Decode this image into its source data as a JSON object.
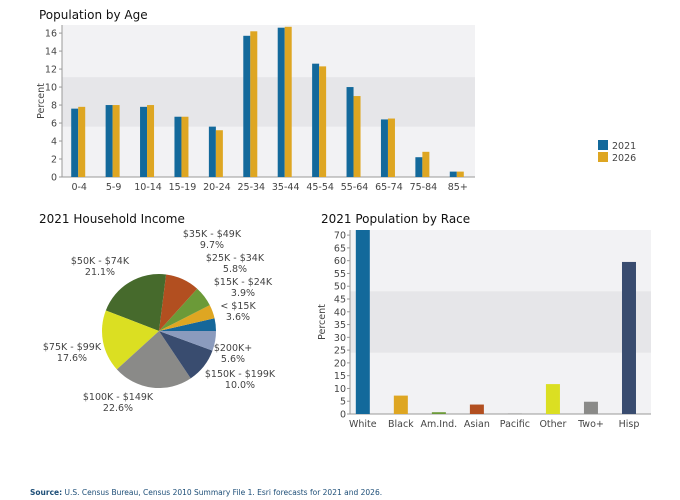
{
  "chart_data": [
    {
      "type": "bar",
      "title": "Population by Age",
      "ylabel": "Percent",
      "ylim": [
        0,
        16.9
      ],
      "yticks": [
        0,
        2,
        4,
        6,
        8,
        10,
        12,
        14,
        16
      ],
      "categories": [
        "0-4",
        "5-9",
        "10-14",
        "15-19",
        "20-24",
        "25-34",
        "35-44",
        "45-54",
        "55-64",
        "65-74",
        "75-84",
        "85+"
      ],
      "series": [
        {
          "name": "2021",
          "color": "#13699b",
          "values": [
            7.6,
            8.0,
            7.8,
            6.7,
            5.6,
            15.7,
            16.6,
            12.6,
            10.0,
            6.4,
            2.2,
            0.6
          ]
        },
        {
          "name": "2026",
          "color": "#dea622",
          "values": [
            7.8,
            8.0,
            8.0,
            6.7,
            5.2,
            16.2,
            16.7,
            12.3,
            9.0,
            6.5,
            2.8,
            0.6
          ]
        }
      ],
      "legend": "right"
    },
    {
      "type": "pie",
      "title": "2021 Household Income",
      "slices": [
        {
          "label": "< $15K",
          "value": 3.6,
          "pct": "3.6%",
          "color": "#15679a"
        },
        {
          "label": "$15K - $24K",
          "value": 3.9,
          "pct": "3.9%",
          "color": "#dea622"
        },
        {
          "label": "$25K - $34K",
          "value": 5.8,
          "pct": "5.8%",
          "color": "#6b9a38"
        },
        {
          "label": "$35K - $49K",
          "value": 9.7,
          "pct": "9.7%",
          "color": "#b24f20"
        },
        {
          "label": "$50K - $74K",
          "value": 21.1,
          "pct": "21.1%",
          "color": "#466a2c"
        },
        {
          "label": "$75K - $99K",
          "value": 17.6,
          "pct": "17.6%",
          "color": "#dbdf22"
        },
        {
          "label": "$100K - $149K",
          "value": 22.6,
          "pct": "22.6%",
          "color": "#8a8a88"
        },
        {
          "label": "$150K - $199K",
          "value": 10.0,
          "pct": "10.0%",
          "color": "#394c6f"
        },
        {
          "label": "$200K+",
          "value": 5.6,
          "pct": "5.6%",
          "color": "#8b9bbd"
        }
      ]
    },
    {
      "type": "bar",
      "title": "2021 Population by Race",
      "ylabel": "Percent",
      "ylim": [
        0,
        72
      ],
      "yticks": [
        0,
        5,
        10,
        15,
        20,
        25,
        30,
        35,
        40,
        45,
        50,
        55,
        60,
        65,
        70
      ],
      "categories": [
        "White",
        "Black",
        "Am.Ind.",
        "Asian",
        "Pacific",
        "Other",
        "Two+",
        "Hisp"
      ],
      "values": [
        72,
        7.2,
        0.7,
        3.7,
        0.2,
        11.7,
        4.8,
        59.5
      ],
      "colors": [
        "#13699b",
        "#dea622",
        "#6b9a38",
        "#b24f20",
        "#8a8a88",
        "#dbdf22",
        "#8a8a88",
        "#394c6f"
      ]
    }
  ],
  "source": {
    "label": "Source:",
    "text": " U.S. Census Bureau, Census 2010 Summary File 1.  Esri forecasts for 2021 and 2026."
  }
}
